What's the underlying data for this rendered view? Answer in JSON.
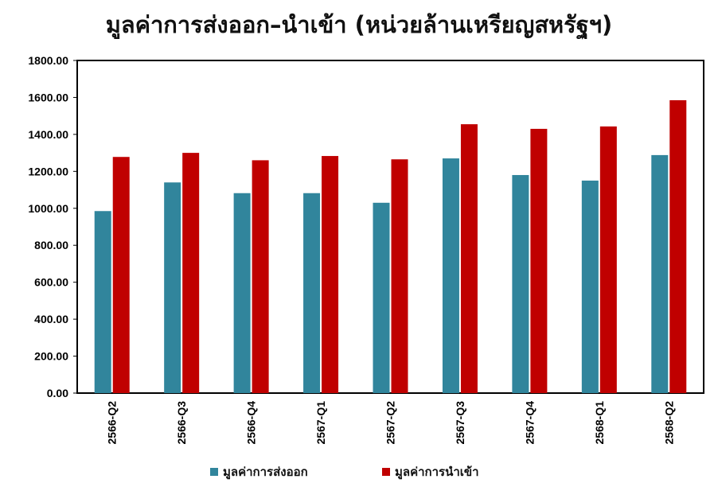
{
  "chart_data": {
    "type": "bar",
    "title": "มูลค่าการส่งออก–นำเข้า (หน่วยล้านเหรียญสหรัฐฯ)",
    "xlabel": "",
    "ylabel": "",
    "ylim": [
      0,
      1800
    ],
    "yticks": [
      "0.00",
      "200.00",
      "400.00",
      "600.00",
      "800.00",
      "1000.00",
      "1200.00",
      "1400.00",
      "1600.00",
      "1800.00"
    ],
    "categories": [
      "2566-Q2",
      "2566-Q3",
      "2566-Q4",
      "2567-Q1",
      "2567-Q2",
      "2567-Q3",
      "2567-Q4",
      "2568-Q1",
      "2568-Q2"
    ],
    "series": [
      {
        "name": "มูลค่าการส่งออก",
        "color": "#31859C",
        "values": [
          985,
          1140,
          1082,
          1082,
          1030,
          1270,
          1180,
          1150,
          1288
        ]
      },
      {
        "name": "มูลค่าการนำเข้า",
        "color": "#C00000",
        "values": [
          1278,
          1300,
          1260,
          1283,
          1265,
          1455,
          1430,
          1443,
          1585
        ]
      }
    ],
    "grid": false,
    "legend": "bottom"
  }
}
